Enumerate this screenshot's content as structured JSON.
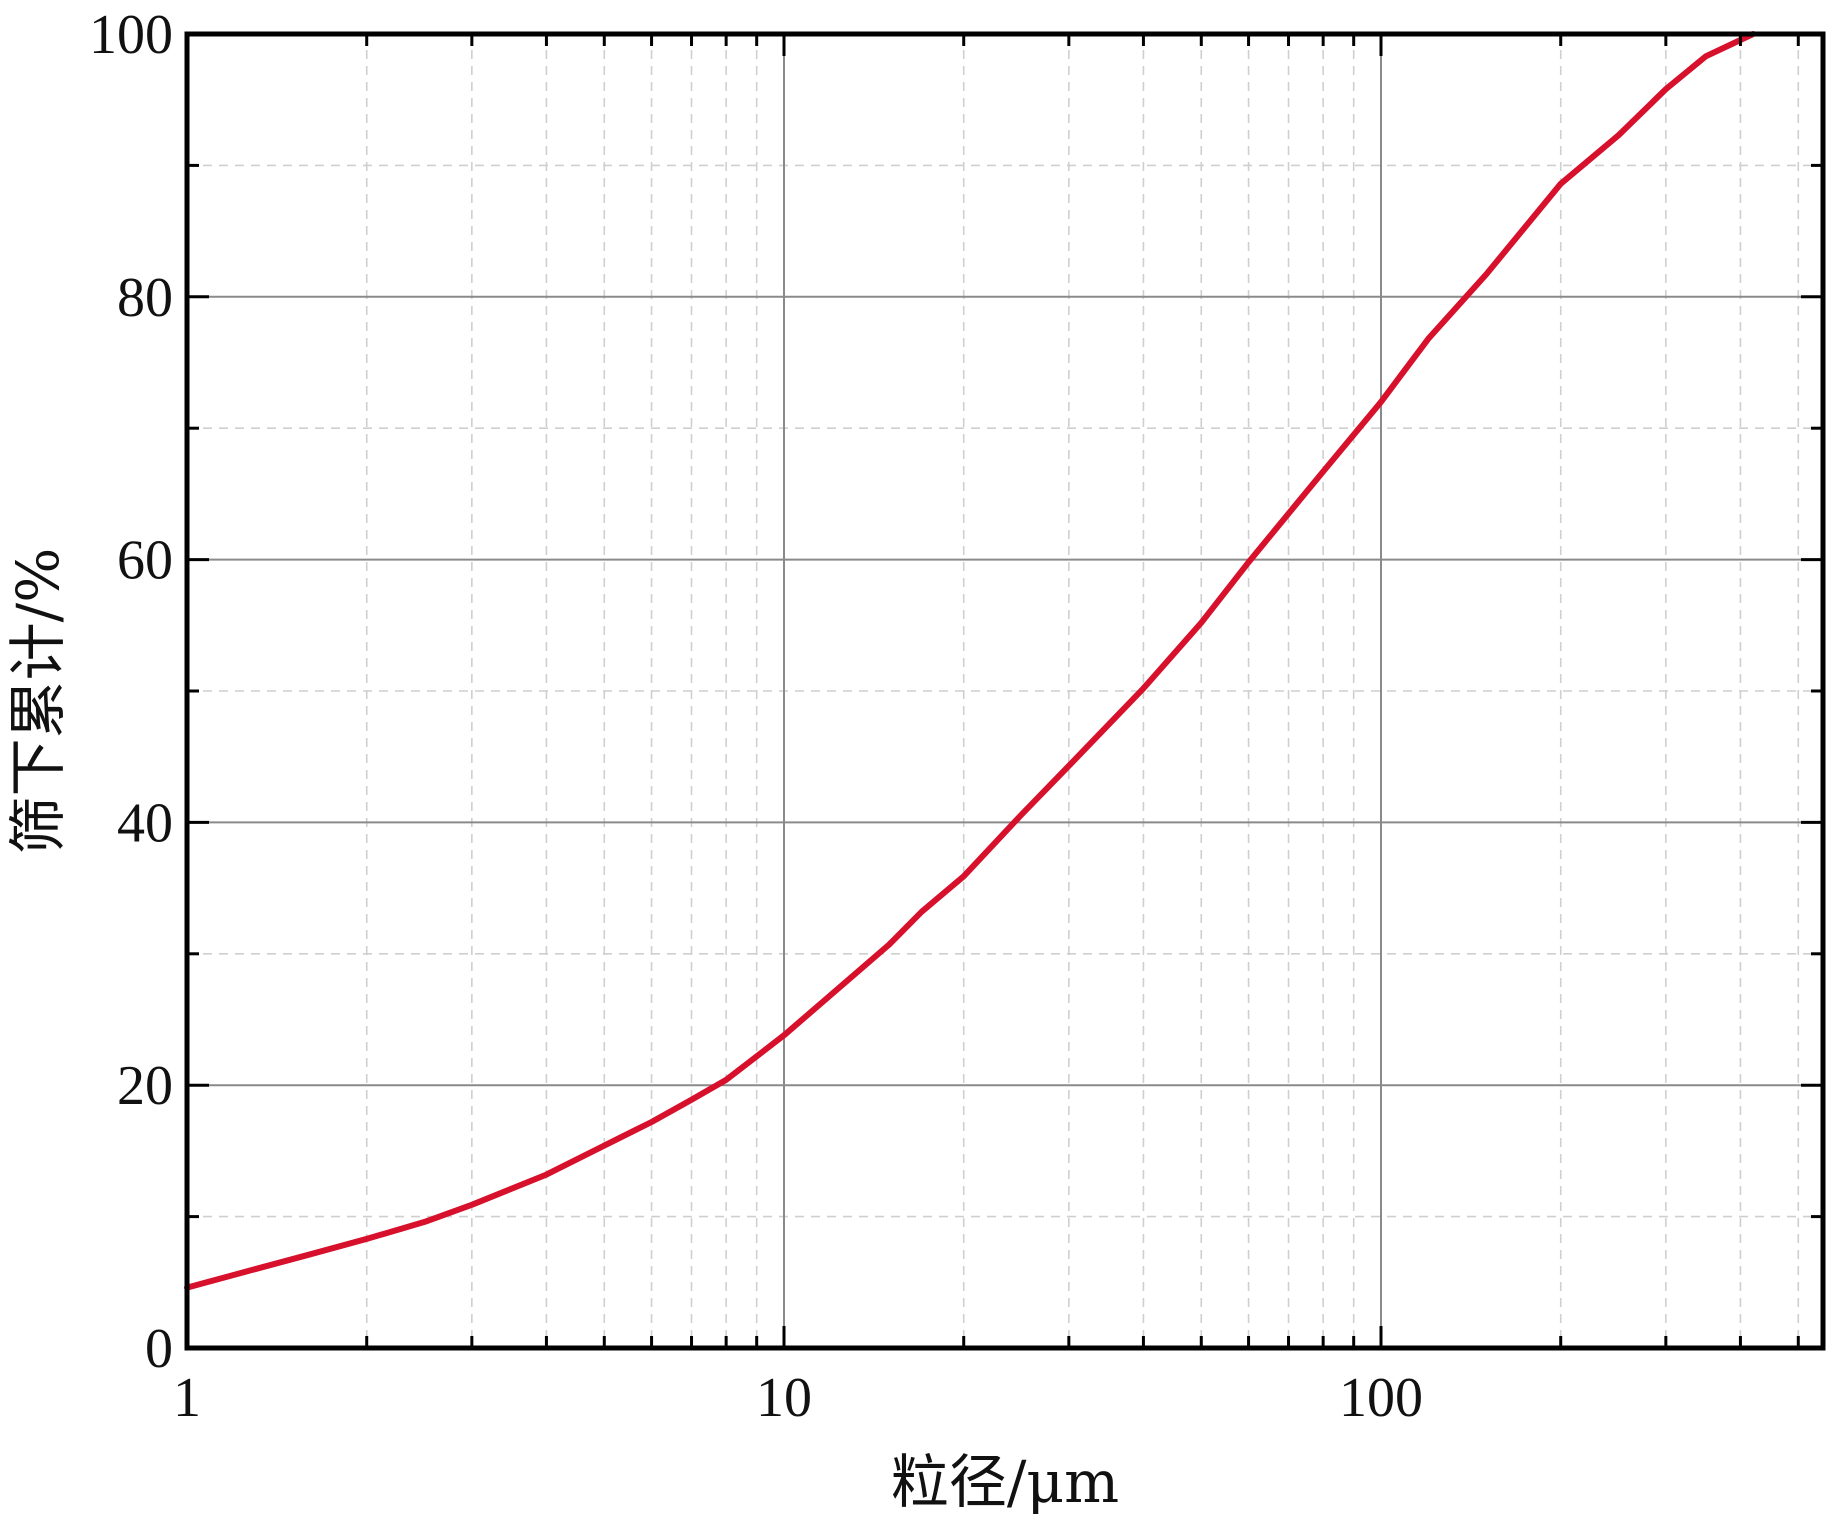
{
  "chart_data": {
    "type": "line",
    "title": "",
    "xlabel": "粒径/μm",
    "ylabel": "筛下累计/%",
    "x_scale": "log",
    "xlim": [
      1,
      550
    ],
    "ylim": [
      0,
      100
    ],
    "x_ticks": [
      1,
      10,
      100
    ],
    "x_tick_labels": [
      "1",
      "10",
      "100"
    ],
    "y_ticks": [
      0,
      20,
      40,
      60,
      80,
      100
    ],
    "y_tick_labels": [
      "0",
      "20",
      "40",
      "60",
      "80",
      "100"
    ],
    "grid": true,
    "series": [
      {
        "color": "#d7102c",
        "x": [
          1,
          1.3,
          1.6,
          2,
          2.5,
          3,
          4,
          5,
          6,
          7,
          8,
          10,
          12,
          15,
          17,
          20,
          25,
          30,
          40,
          50,
          60,
          70,
          80,
          100,
          120,
          150,
          200,
          250,
          300,
          350,
          420
        ],
        "y": [
          4.6,
          6.0,
          7.1,
          8.3,
          9.6,
          10.9,
          13.2,
          15.4,
          17.2,
          18.9,
          20.4,
          23.8,
          26.9,
          30.7,
          33.2,
          35.9,
          40.6,
          44.3,
          50.2,
          55.2,
          59.8,
          63.5,
          66.7,
          72.0,
          76.8,
          81.7,
          88.6,
          92.3,
          95.8,
          98.3,
          100
        ]
      }
    ]
  }
}
